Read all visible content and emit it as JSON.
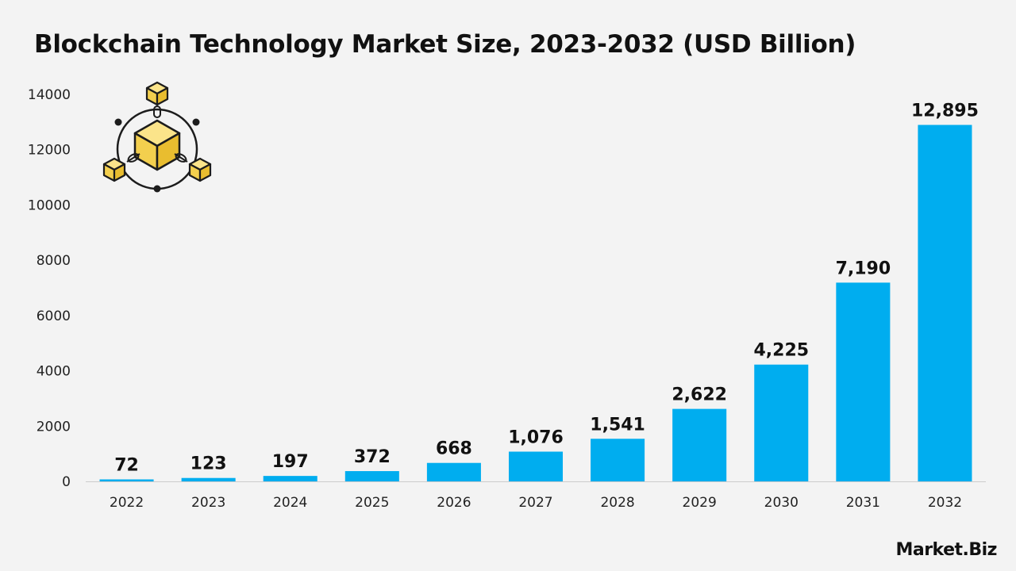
{
  "header": {
    "title": "Blockchain Technology Market Size, 2023-2032 (USD Billion)"
  },
  "branding": {
    "logo_text": "Market.Biz"
  },
  "icon": {
    "name": "blockchain-cube-icon",
    "fill": "#f9dc6b",
    "stroke": "#1c1c1c"
  },
  "colors": {
    "bar": "#00adef",
    "axis_text": "#222222",
    "label_text": "#111111",
    "baseline": "#cccccc"
  },
  "chart_data": {
    "type": "bar",
    "title": "Blockchain Technology Market Size, 2023-2032 (USD Billion)",
    "xlabel": "",
    "ylabel": "",
    "categories": [
      "2022",
      "2023",
      "2024",
      "2025",
      "2026",
      "2027",
      "2028",
      "2029",
      "2030",
      "2031",
      "2032"
    ],
    "values": [
      72,
      123,
      197,
      372,
      668,
      1076,
      1541,
      2622,
      4225,
      7190,
      12895
    ],
    "value_labels": [
      "72",
      "123",
      "197",
      "372",
      "668",
      "1,076",
      "1,541",
      "2,622",
      "4,225",
      "7,190",
      "12,895"
    ],
    "ylim": [
      0,
      14000
    ],
    "yticks": [
      0,
      2000,
      4000,
      6000,
      8000,
      10000,
      12000,
      14000
    ],
    "grid": false,
    "legend": "none"
  }
}
